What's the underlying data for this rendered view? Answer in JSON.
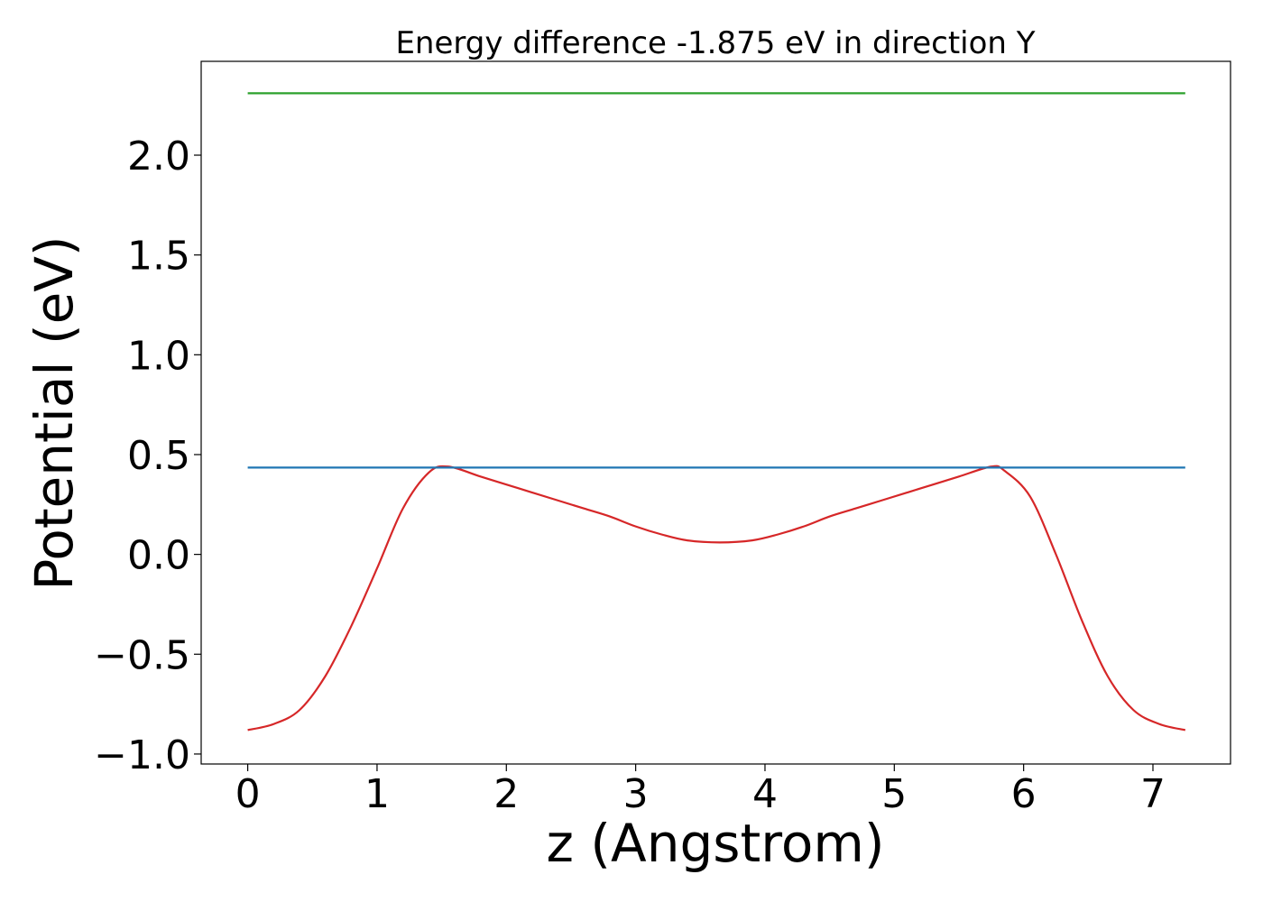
{
  "chart_data": {
    "type": "line",
    "title": "Energy difference -1.875 eV in direction Y",
    "xlabel": "z (Angstrom)",
    "ylabel": "Potential (eV)",
    "xlim": [
      -0.36,
      7.6
    ],
    "ylim": [
      -1.05,
      2.47
    ],
    "xticks": [
      0,
      1,
      2,
      3,
      4,
      5,
      6,
      7
    ],
    "xtick_labels": [
      "0",
      "1",
      "2",
      "3",
      "4",
      "5",
      "6",
      "7"
    ],
    "yticks": [
      -1.0,
      -0.5,
      0.0,
      0.5,
      1.0,
      1.5,
      2.0
    ],
    "ytick_labels": [
      "−1.0",
      "−0.5",
      "0.0",
      "0.5",
      "1.0",
      "1.5",
      "2.0"
    ],
    "grid": false,
    "series": [
      {
        "color": "#d62728",
        "x": [
          0,
          0.2,
          0.4,
          0.6,
          0.8,
          1.0,
          1.2,
          1.4,
          1.55,
          1.8,
          2.0,
          2.2,
          2.4,
          2.6,
          2.8,
          3.0,
          3.2,
          3.4,
          3.65,
          3.9,
          4.1,
          4.3,
          4.5,
          4.7,
          4.9,
          5.1,
          5.3,
          5.5,
          5.75,
          5.85,
          6.05,
          6.25,
          6.45,
          6.65,
          6.85,
          7.05,
          7.25
        ],
        "y": [
          -0.88,
          -0.85,
          -0.78,
          -0.61,
          -0.36,
          -0.07,
          0.23,
          0.41,
          0.44,
          0.39,
          0.35,
          0.31,
          0.27,
          0.23,
          0.19,
          0.14,
          0.1,
          0.07,
          0.06,
          0.07,
          0.1,
          0.14,
          0.19,
          0.23,
          0.27,
          0.31,
          0.35,
          0.39,
          0.44,
          0.42,
          0.29,
          0.0,
          -0.33,
          -0.61,
          -0.78,
          -0.85,
          -0.88
        ]
      },
      {
        "color": "#1f77b4",
        "x": [
          0,
          7.25
        ],
        "y": [
          0.435,
          0.435
        ]
      },
      {
        "color": "#2ca02c",
        "x": [
          0,
          7.25
        ],
        "y": [
          2.31,
          2.31
        ]
      }
    ]
  }
}
